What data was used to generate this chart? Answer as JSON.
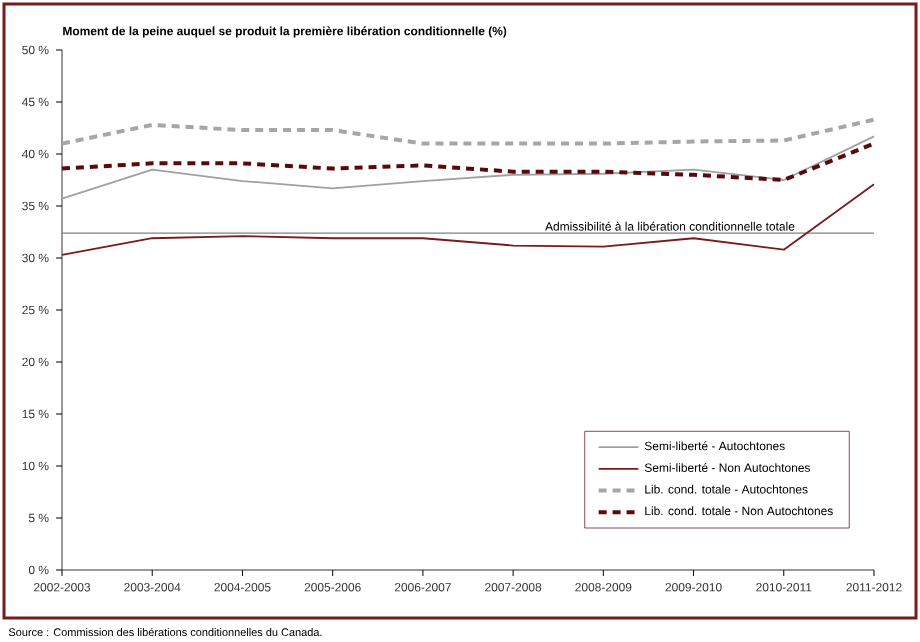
{
  "chart_data": {
    "type": "line",
    "title": "Moment de la peine auquel se produit la première libération conditionnelle (%)",
    "categories": [
      "2002-2003",
      "2003-2004",
      "2004-2005",
      "2005-2006",
      "2006-2007",
      "2007-2008",
      "2008-2009",
      "2009-2010",
      "2010-2011",
      "2011-2012"
    ],
    "series": [
      {
        "name": "Semi-liberté - Autochtones",
        "color": "#a0a0a0",
        "line_style": "solid",
        "values": [
          35.7,
          38.5,
          37.4,
          36.7,
          37.4,
          38.0,
          38.1,
          38.5,
          37.5,
          41.7
        ]
      },
      {
        "name": "Semi-liberté - Non Autochtones",
        "color": "#7a1a1a",
        "line_style": "solid",
        "values": [
          30.3,
          31.9,
          32.1,
          31.9,
          31.9,
          31.2,
          31.1,
          31.9,
          30.8,
          37.1
        ]
      },
      {
        "name": "Lib. cond. totale - Autochtones",
        "color": "#a6a6a6",
        "line_style": "dashed",
        "values": [
          41.0,
          42.8,
          42.3,
          42.3,
          41.0,
          41.0,
          41.0,
          41.2,
          41.3,
          43.3
        ]
      },
      {
        "name": "Lib. cond. totale - Non Autochtones",
        "color": "#5a0a0a",
        "line_style": "dashed",
        "values": [
          38.6,
          39.1,
          39.1,
          38.6,
          38.9,
          38.3,
          38.3,
          38.0,
          37.5,
          41.0
        ]
      }
    ],
    "ylim": [
      0,
      50
    ],
    "yticks": [
      {
        "value": 0,
        "label": "0 %"
      },
      {
        "value": 5,
        "label": "5 %"
      },
      {
        "value": 10,
        "label": "10 %"
      },
      {
        "value": 15,
        "label": "15 %"
      },
      {
        "value": 20,
        "label": "20 %"
      },
      {
        "value": 25,
        "label": "25 %"
      },
      {
        "value": 30,
        "label": "30 %"
      },
      {
        "value": 35,
        "label": "35 %"
      },
      {
        "value": 40,
        "label": "40 %"
      },
      {
        "value": 45,
        "label": "45 %"
      },
      {
        "value": 50,
        "label": "50 %"
      }
    ],
    "ref_lines": [
      {
        "axis": "y",
        "value": 32.4,
        "label": "Admissibilité à la libération conditionnelle totale",
        "color": "#808080"
      }
    ],
    "legend": "bottom right",
    "grid": false,
    "annotations": [
      "Source : Commission des libérations conditionnelles du Canada."
    ]
  }
}
